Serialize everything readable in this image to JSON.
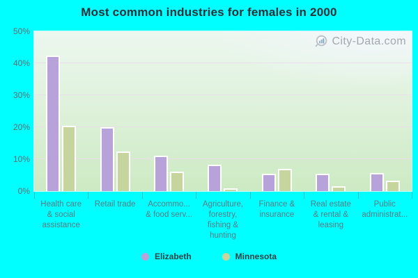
{
  "watermark": {
    "text": "City-Data.com",
    "icon": "magnifier-with-bars"
  },
  "colors": {
    "background": "#00ffff",
    "plot_top": "#ecf7ef",
    "plot_bottom": "#cceac3",
    "gridline": "#e9deea",
    "series_elizabeth": "#b7a3d9",
    "series_minnesota": "#c6d59d",
    "title_text": "#2d3038",
    "axis_text": "#5e6e72",
    "category_text": "#5a7b84",
    "watermark_text": "#a2a8ae"
  },
  "chart_data": {
    "type": "bar",
    "title": "Most common industries for females in 2000",
    "categories": [
      "Health care\n& social\nassistance",
      "Retail trade",
      "Accommo...\n& food serv...",
      "Agriculture,\nforestry,\nfishing &\nhunting",
      "Finance &\ninsurance",
      "Real estate\n& rental &\nleasing",
      "Public\nadministrat..."
    ],
    "series": [
      {
        "name": "Elizabeth",
        "color": "#b7a3d9",
        "values": [
          42.5,
          20,
          11,
          8.3,
          5.5,
          5.5,
          5.6
        ]
      },
      {
        "name": "Minnesota",
        "color": "#c6d59d",
        "values": [
          20.5,
          12.5,
          6,
          0.8,
          7,
          1.5,
          3.3
        ]
      }
    ],
    "xlabel": "",
    "ylabel": "",
    "ylim": [
      0,
      50
    ],
    "yticks": [
      "0%",
      "10%",
      "20%",
      "30%",
      "40%",
      "50%"
    ],
    "grid": true,
    "legend_position": "bottom"
  }
}
